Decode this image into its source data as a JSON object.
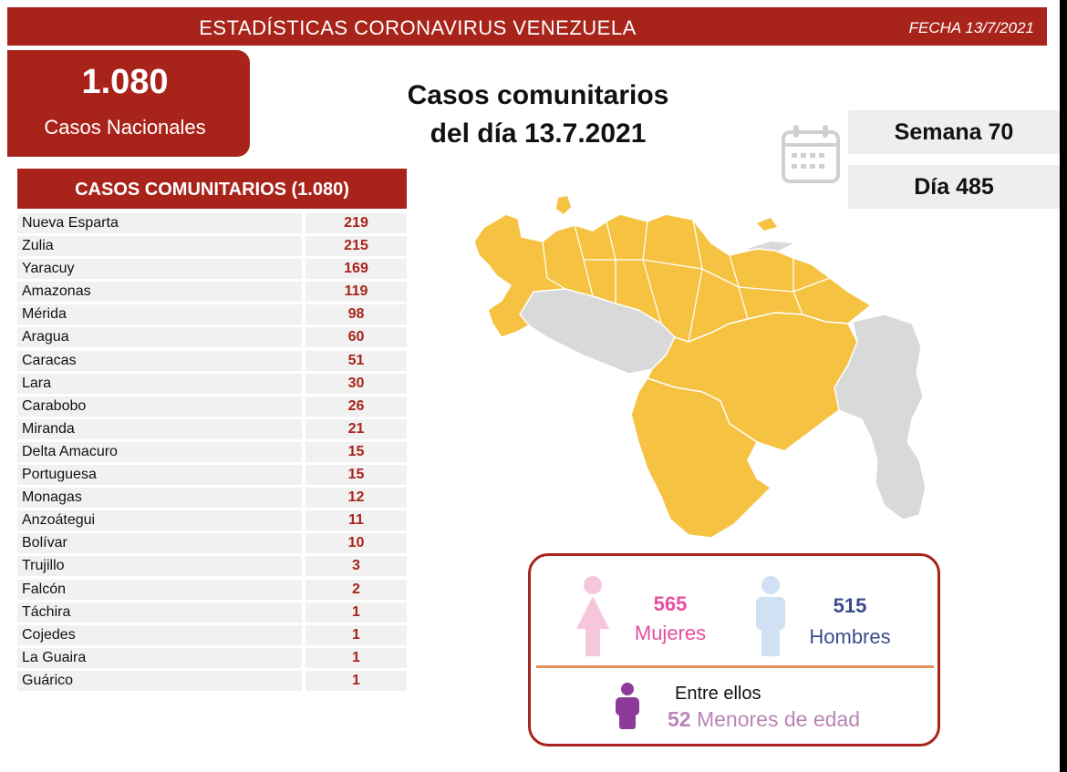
{
  "header": {
    "title": "ESTADÍSTICAS CORONAVIRUS VENEZUELA",
    "date": "FECHA 13/7/2021"
  },
  "national": {
    "count": "1.080",
    "label": "Casos Nacionales"
  },
  "headline": {
    "line1": "Casos comunitarios",
    "line2": "del día 13.7.2021"
  },
  "calendar": {
    "icon": "calendar-icon",
    "week": "Semana 70",
    "day": "Día 485"
  },
  "table": {
    "title": "CASOS COMUNITARIOS (1.080)",
    "rows": [
      {
        "name": "Nueva Esparta",
        "value": "219"
      },
      {
        "name": "Zulia",
        "value": "215"
      },
      {
        "name": "Yaracuy",
        "value": "169"
      },
      {
        "name": "Amazonas",
        "value": "119"
      },
      {
        "name": "Mérida",
        "value": "98"
      },
      {
        "name": "Aragua",
        "value": "60"
      },
      {
        "name": "Caracas",
        "value": "51"
      },
      {
        "name": "Lara",
        "value": "30"
      },
      {
        "name": "Carabobo",
        "value": "26"
      },
      {
        "name": "Miranda",
        "value": "21"
      },
      {
        "name": "Delta Amacuro",
        "value": "15"
      },
      {
        "name": "Portuguesa",
        "value": "15"
      },
      {
        "name": "Monagas",
        "value": "12"
      },
      {
        "name": "Anzoátegui",
        "value": "11"
      },
      {
        "name": "Bolívar",
        "value": "10"
      },
      {
        "name": "Trujillo",
        "value": "3"
      },
      {
        "name": "Falcón",
        "value": "2"
      },
      {
        "name": "Táchira",
        "value": "1"
      },
      {
        "name": "Cojedes",
        "value": "1"
      },
      {
        "name": "La Guaira",
        "value": "1"
      },
      {
        "name": "Guárico",
        "value": "1"
      }
    ]
  },
  "map": {
    "icon": "venezuela-map",
    "affected_color": "#f5c242",
    "unaffected_color": "#d9d9d9"
  },
  "gender": {
    "women_count": "565",
    "women_label": "Mujeres",
    "men_count": "515",
    "men_label": "Hombres",
    "minors_intro": "Entre ellos",
    "minors_count": "52",
    "minors_label": "Menores de edad"
  },
  "colors": {
    "brand_red": "#a8241b",
    "women": "#e64fa0",
    "men": "#3c4c8c",
    "minors": "#8e3a9a"
  }
}
